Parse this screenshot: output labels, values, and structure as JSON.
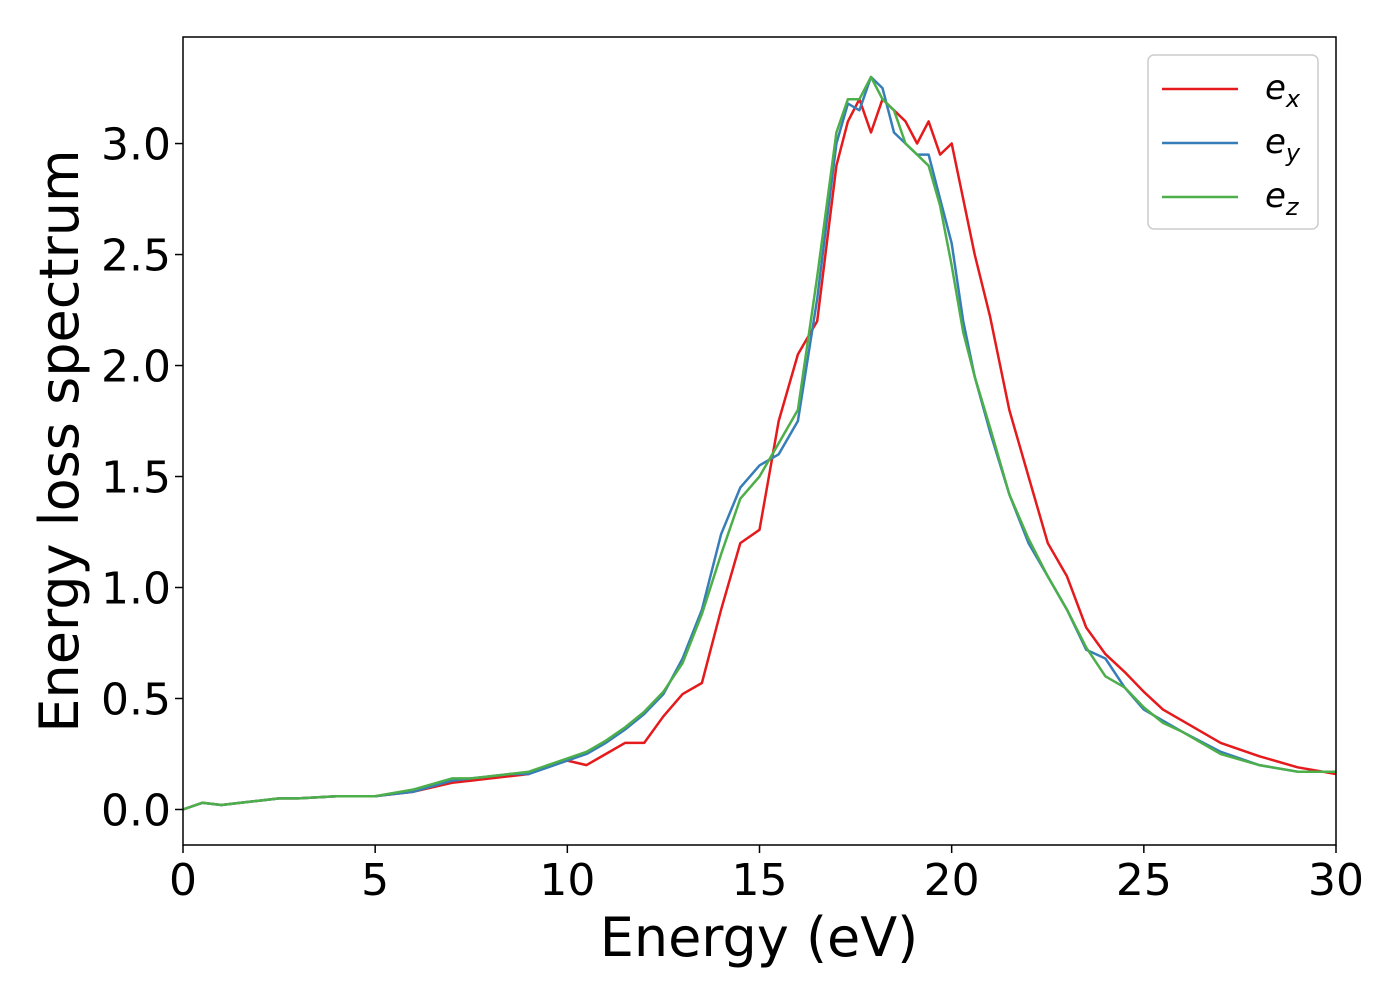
{
  "chart_data": {
    "type": "line",
    "title": "",
    "xlabel": "Energy (eV)",
    "ylabel": "Energy loss spectrum",
    "xlim": [
      0,
      30
    ],
    "ylim": [
      -0.16,
      3.48
    ],
    "xticks": [
      0,
      5,
      10,
      15,
      20,
      25,
      30
    ],
    "xtick_labels": [
      "0",
      "5",
      "10",
      "15",
      "20",
      "25",
      "30"
    ],
    "yticks": [
      0.0,
      0.5,
      1.0,
      1.5,
      2.0,
      2.5,
      3.0
    ],
    "ytick_labels": [
      "0.0",
      "0.5",
      "1.0",
      "1.5",
      "2.0",
      "2.5",
      "3.0"
    ],
    "grid": false,
    "legend_position": "top-right",
    "series": [
      {
        "name": "e_x",
        "label_main": "e",
        "label_sub": "x",
        "color": "#e41a1c",
        "x": [
          0,
          0.5,
          1,
          1.5,
          2,
          2.5,
          3,
          4,
          5,
          6,
          7,
          7.5,
          8,
          8.5,
          9,
          9.5,
          10,
          10.5,
          11,
          11.5,
          12,
          12.5,
          13,
          13.5,
          14,
          14.5,
          15,
          15.5,
          16,
          16.5,
          17,
          17.3,
          17.6,
          17.9,
          18.2,
          18.5,
          18.8,
          19.1,
          19.4,
          19.7,
          20,
          20.3,
          20.6,
          21,
          21.5,
          22,
          22.5,
          23,
          23.5,
          24,
          24.5,
          25,
          25.5,
          26,
          27,
          28,
          29,
          30
        ],
        "y": [
          0.0,
          0.03,
          0.02,
          0.03,
          0.04,
          0.05,
          0.05,
          0.06,
          0.06,
          0.08,
          0.12,
          0.13,
          0.14,
          0.15,
          0.16,
          0.2,
          0.22,
          0.2,
          0.25,
          0.3,
          0.3,
          0.42,
          0.52,
          0.57,
          0.9,
          1.2,
          1.26,
          1.75,
          2.05,
          2.2,
          2.9,
          3.1,
          3.2,
          3.05,
          3.2,
          3.15,
          3.1,
          3.0,
          3.1,
          2.95,
          3.0,
          2.75,
          2.5,
          2.22,
          1.8,
          1.5,
          1.2,
          1.05,
          0.82,
          0.7,
          0.62,
          0.53,
          0.45,
          0.4,
          0.3,
          0.24,
          0.19,
          0.16
        ]
      },
      {
        "name": "e_y",
        "label_main": "e",
        "label_sub": "y",
        "color": "#377eb8",
        "x": [
          0,
          0.5,
          1,
          1.5,
          2,
          2.5,
          3,
          4,
          5,
          6,
          7,
          7.5,
          8,
          8.5,
          9,
          9.5,
          10,
          10.5,
          11,
          11.5,
          12,
          12.5,
          13,
          13.5,
          14,
          14.5,
          15,
          15.5,
          16,
          16.5,
          17,
          17.3,
          17.6,
          17.9,
          18.2,
          18.5,
          18.8,
          19.1,
          19.4,
          19.7,
          20,
          20.3,
          20.6,
          21,
          21.5,
          22,
          22.5,
          23,
          23.5,
          24,
          24.5,
          25,
          25.5,
          26,
          27,
          28,
          29,
          30
        ],
        "y": [
          0.0,
          0.03,
          0.02,
          0.03,
          0.04,
          0.05,
          0.05,
          0.06,
          0.06,
          0.08,
          0.13,
          0.14,
          0.15,
          0.16,
          0.16,
          0.19,
          0.22,
          0.25,
          0.3,
          0.36,
          0.43,
          0.52,
          0.68,
          0.9,
          1.24,
          1.45,
          1.55,
          1.6,
          1.75,
          2.3,
          3.0,
          3.18,
          3.15,
          3.3,
          3.25,
          3.05,
          3.0,
          2.95,
          2.95,
          2.75,
          2.55,
          2.2,
          1.95,
          1.7,
          1.42,
          1.2,
          1.05,
          0.9,
          0.72,
          0.68,
          0.55,
          0.45,
          0.4,
          0.35,
          0.26,
          0.2,
          0.17,
          0.17
        ]
      },
      {
        "name": "e_z",
        "label_main": "e",
        "label_sub": "z",
        "color": "#4daf4a",
        "x": [
          0,
          0.5,
          1,
          1.5,
          2,
          2.5,
          3,
          4,
          5,
          6,
          7,
          7.5,
          8,
          8.5,
          9,
          9.5,
          10,
          10.5,
          11,
          11.5,
          12,
          12.5,
          13,
          13.5,
          14,
          14.5,
          15,
          15.5,
          16,
          16.5,
          17,
          17.3,
          17.6,
          17.9,
          18.2,
          18.5,
          18.8,
          19.1,
          19.4,
          19.7,
          20,
          20.3,
          20.6,
          21,
          21.5,
          22,
          22.5,
          23,
          23.5,
          24,
          24.5,
          25,
          25.5,
          26,
          27,
          28,
          29,
          30
        ],
        "y": [
          0.0,
          0.03,
          0.02,
          0.03,
          0.04,
          0.05,
          0.05,
          0.06,
          0.06,
          0.09,
          0.14,
          0.14,
          0.15,
          0.16,
          0.17,
          0.2,
          0.23,
          0.26,
          0.31,
          0.37,
          0.44,
          0.53,
          0.66,
          0.88,
          1.15,
          1.4,
          1.5,
          1.65,
          1.8,
          2.4,
          3.05,
          3.2,
          3.2,
          3.3,
          3.2,
          3.15,
          3.0,
          2.95,
          2.9,
          2.72,
          2.45,
          2.15,
          1.95,
          1.72,
          1.42,
          1.22,
          1.05,
          0.9,
          0.73,
          0.6,
          0.55,
          0.46,
          0.39,
          0.35,
          0.25,
          0.2,
          0.17,
          0.17
        ]
      }
    ]
  }
}
